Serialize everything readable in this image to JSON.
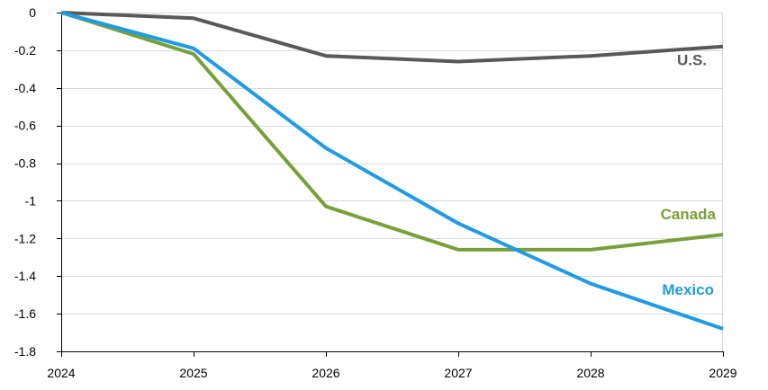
{
  "chart_data": {
    "type": "line",
    "title": "",
    "xlabel": "",
    "ylabel": "",
    "x": [
      2024,
      2025,
      2026,
      2027,
      2028,
      2029
    ],
    "x_tick_labels": [
      "2024",
      "2025",
      "2026",
      "2027",
      "2028",
      "2029"
    ],
    "ylim": [
      -1.8,
      0
    ],
    "y_ticks": [
      0,
      -0.2,
      -0.4,
      -0.6,
      -0.8,
      -1,
      -1.2,
      -1.4,
      -1.6,
      -1.8
    ],
    "y_tick_labels": [
      "0",
      "-0.2",
      "-0.4",
      "-0.6",
      "-0.8",
      "-1",
      "-1.2",
      "-1.4",
      "-1.6",
      "-1.8"
    ],
    "grid": true,
    "legend": "inline labels at line ends",
    "series": [
      {
        "name": "U.S.",
        "color": "#595959",
        "values": [
          0,
          -0.03,
          -0.23,
          -0.26,
          -0.23,
          -0.18
        ]
      },
      {
        "name": "Canada",
        "color": "#77a03a",
        "values": [
          0,
          -0.22,
          -1.03,
          -1.26,
          -1.26,
          -1.18
        ]
      },
      {
        "name": "Mexico",
        "color": "#1e9ae6",
        "values": [
          0,
          -0.19,
          -0.72,
          -1.12,
          -1.44,
          -1.68
        ]
      }
    ]
  }
}
